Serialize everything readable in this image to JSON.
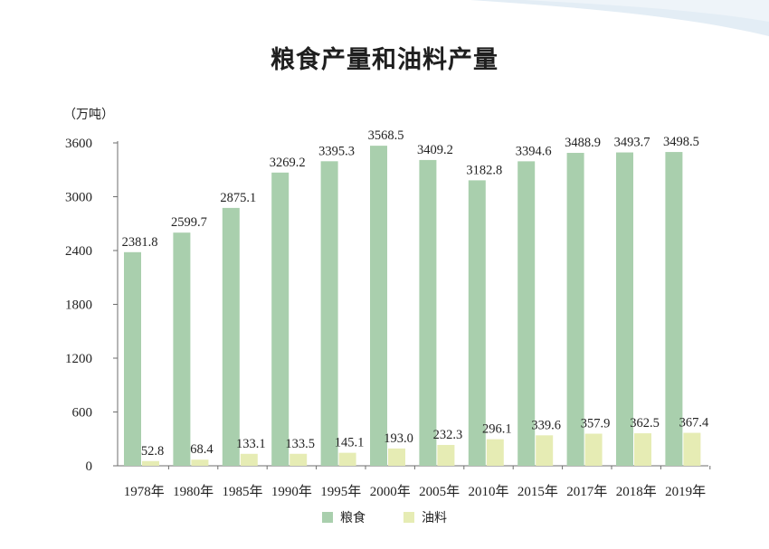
{
  "colors": {
    "grain": "#a9cfad",
    "oil": "#e6ecb4",
    "axis": "#6e6e6e",
    "deco": "#d9e7f2"
  },
  "chart_data": {
    "type": "bar",
    "title": "粮食产量和油料产量",
    "unit_label": "（万吨）",
    "categories": [
      "1978年",
      "1980年",
      "1985年",
      "1990年",
      "1995年",
      "2000年",
      "2005年",
      "2010年",
      "2015年",
      "2017年",
      "2018年",
      "2019年"
    ],
    "series": [
      {
        "name": "粮食",
        "color": "#a9cfad",
        "values": [
          2381.8,
          2599.7,
          2875.1,
          3269.2,
          3395.3,
          3568.5,
          3409.2,
          3182.8,
          3394.6,
          3488.9,
          3493.7,
          3498.5
        ],
        "labels": [
          "2381.8",
          "2599.7",
          "2875.1",
          "3269.2",
          "3395.3",
          "3568.5",
          "3409.2",
          "3182.8",
          "3394.6",
          "3488.9",
          "3493.7",
          "3498.5"
        ]
      },
      {
        "name": "油料",
        "color": "#e6ecb4",
        "values": [
          52.8,
          68.4,
          133.1,
          133.5,
          145.1,
          193.0,
          232.3,
          296.1,
          339.6,
          357.9,
          362.5,
          367.4
        ],
        "labels": [
          "52.8",
          "68.4",
          "133.1",
          "133.5",
          "145.1",
          "193.0",
          "232.3",
          "296.1",
          "339.6",
          "357.9",
          "362.5",
          "367.4"
        ]
      }
    ],
    "yticks": [
      "0",
      "600",
      "1200",
      "1800",
      "2400",
      "3000",
      "3600"
    ],
    "ylim": [
      0,
      3600
    ],
    "grid": false,
    "legend_position": "bottom-center"
  }
}
